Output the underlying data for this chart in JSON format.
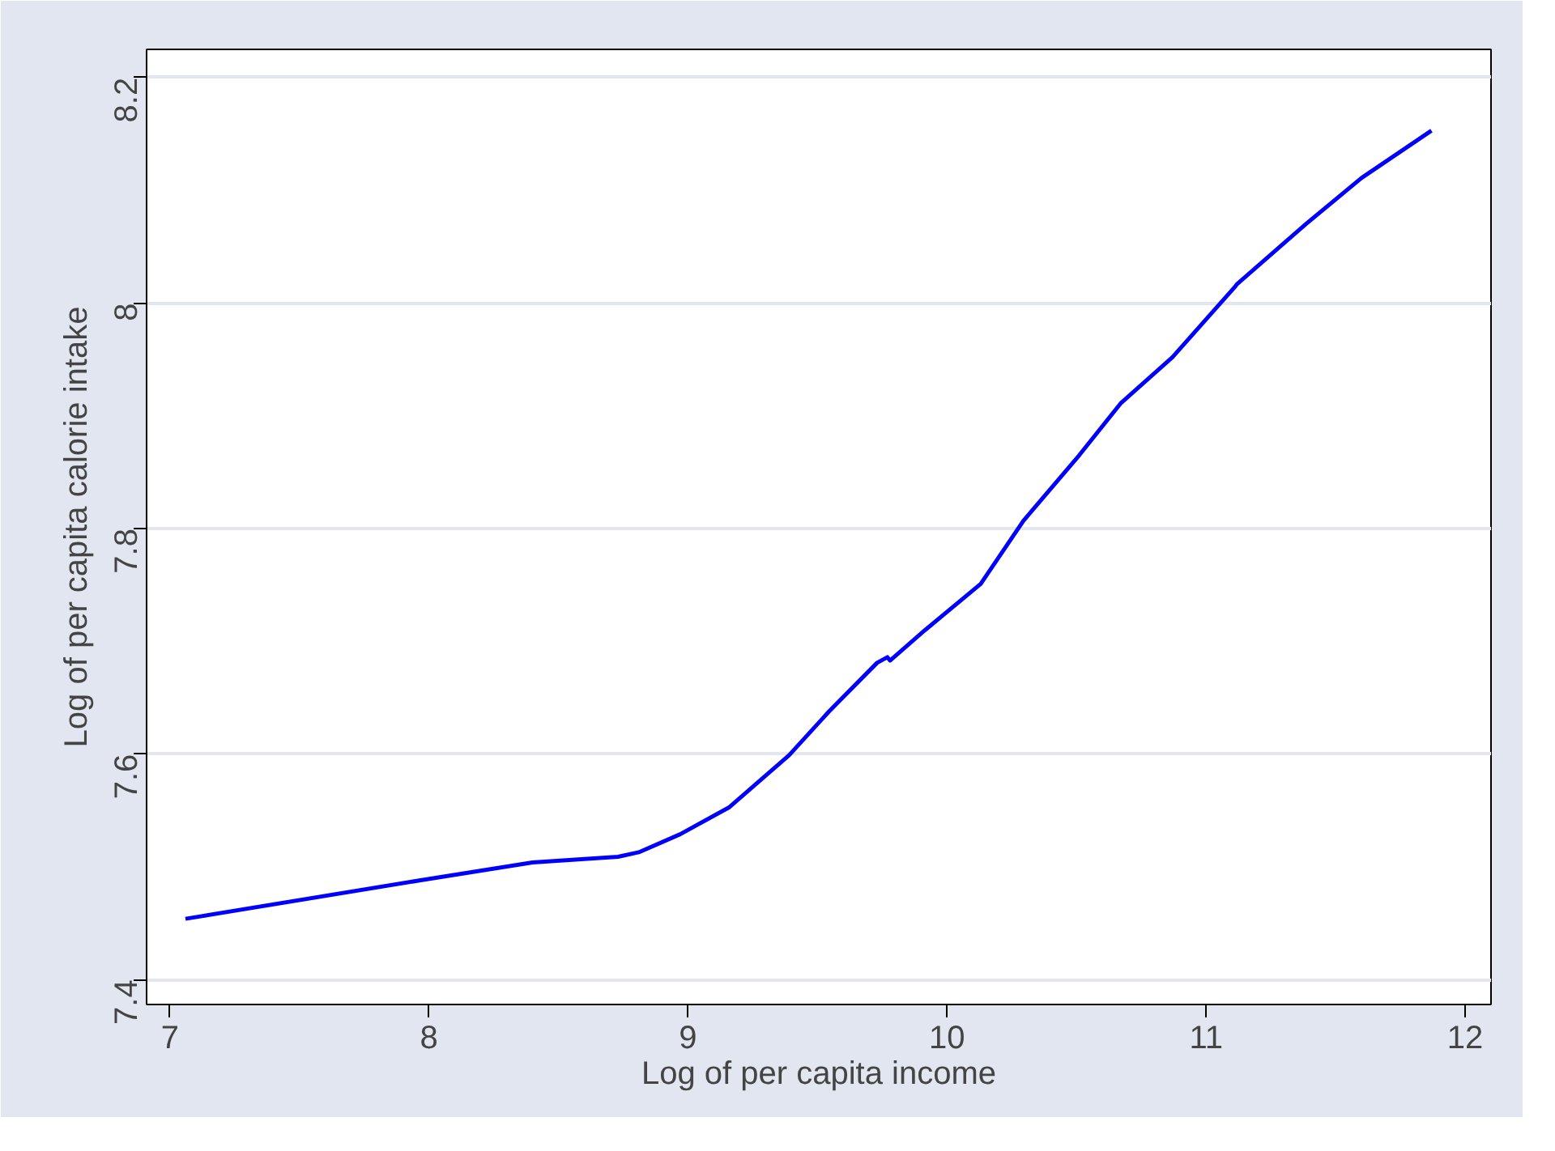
{
  "chart_data": {
    "type": "line",
    "xlabel": "Log of per capita income",
    "ylabel": "Log of per capita calorie intake",
    "xlim": [
      6.91,
      12.1
    ],
    "ylim": [
      7.378,
      8.225
    ],
    "xticks": [
      7,
      8,
      9,
      10,
      11,
      12
    ],
    "yticks": [
      7.4,
      7.6,
      7.8,
      8,
      8.2
    ],
    "grid": "y",
    "marker": "none",
    "line_style": "solid",
    "series": [
      {
        "color": "#0000ff",
        "x": [
          7.06,
          7.963,
          8.4,
          8.73,
          8.81,
          8.97,
          9.16,
          9.39,
          9.545,
          9.73,
          9.77,
          9.78,
          9.915,
          10.13,
          10.295,
          10.51,
          10.67,
          10.87,
          11.11,
          11.12,
          11.385,
          11.6,
          11.87
        ],
        "values": [
          7.454,
          7.488,
          7.504,
          7.509,
          7.513,
          7.529,
          7.553,
          7.599,
          7.638,
          7.681,
          7.686,
          7.683,
          7.71,
          7.751,
          7.807,
          7.865,
          7.911,
          7.952,
          8.014,
          8.017,
          8.07,
          8.111,
          8.153
        ]
      }
    ]
  }
}
